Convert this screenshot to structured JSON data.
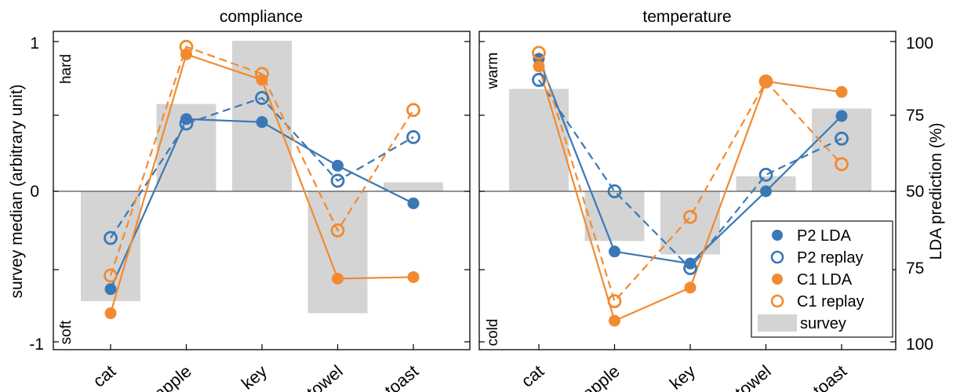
{
  "chart_data": [
    {
      "type": "bar+line",
      "title": "compliance",
      "ylabel": "survey median (arbitrary unit)",
      "ylim": [
        -1,
        1
      ],
      "yticks": [
        "1",
        "0",
        "-1"
      ],
      "top_label": "hard",
      "bottom_label": "soft",
      "categories": [
        "cat",
        "apple",
        "key",
        "towel",
        "toast"
      ],
      "survey": [
        -0.73,
        0.58,
        1.0,
        -0.81,
        0.06
      ],
      "series": [
        {
          "name": "P2 LDA",
          "color": "#3a78b5",
          "style": "solid",
          "marker": "filled",
          "values": [
            -0.65,
            0.48,
            0.46,
            0.17,
            -0.08
          ]
        },
        {
          "name": "P2 replay",
          "color": "#3a78b5",
          "style": "dashed",
          "marker": "open",
          "values": [
            -0.31,
            0.45,
            0.62,
            0.07,
            0.36
          ]
        },
        {
          "name": "C1 LDA",
          "color": "#f28a30",
          "style": "solid",
          "marker": "filled",
          "values": [
            -0.81,
            0.91,
            0.74,
            -0.58,
            -0.57
          ]
        },
        {
          "name": "C1 replay",
          "color": "#f28a30",
          "style": "dashed",
          "marker": "open",
          "values": [
            -0.56,
            0.96,
            0.78,
            -0.26,
            0.54
          ]
        }
      ]
    },
    {
      "type": "bar+line",
      "title": "temperature",
      "ylabel": "LDA prediction (%)",
      "ylim": [
        -1,
        1
      ],
      "yticks": [
        "100",
        "75",
        "50",
        "75",
        "100"
      ],
      "top_label": "warm",
      "bottom_label": "cold",
      "categories": [
        "cat",
        "apple",
        "key",
        "towel",
        "toast"
      ],
      "survey": [
        0.68,
        -0.33,
        -0.42,
        0.1,
        0.55
      ],
      "series": [
        {
          "name": "P2 LDA",
          "color": "#3a78b5",
          "style": "solid",
          "marker": "filled",
          "values": [
            0.88,
            -0.4,
            -0.48,
            0.0,
            0.5
          ]
        },
        {
          "name": "P2 replay",
          "color": "#3a78b5",
          "style": "dashed",
          "marker": "open",
          "values": [
            0.74,
            0.0,
            -0.51,
            0.11,
            0.35
          ]
        },
        {
          "name": "C1 LDA",
          "color": "#f28a30",
          "style": "solid",
          "marker": "filled",
          "values": [
            0.83,
            -0.86,
            -0.64,
            0.73,
            0.66
          ]
        },
        {
          "name": "C1 replay",
          "color": "#f28a30",
          "style": "dashed",
          "marker": "open",
          "values": [
            0.92,
            -0.73,
            -0.17,
            0.73,
            0.18
          ]
        }
      ],
      "legend": {
        "placement": "bottom-right",
        "entries": [
          "P2 LDA",
          "P2 replay",
          "C1 LDA",
          "C1 replay",
          "survey"
        ]
      }
    }
  ],
  "colors": {
    "survey_bar": "#d4d4d4",
    "axis": "#000000",
    "zero_line": "#555555"
  }
}
